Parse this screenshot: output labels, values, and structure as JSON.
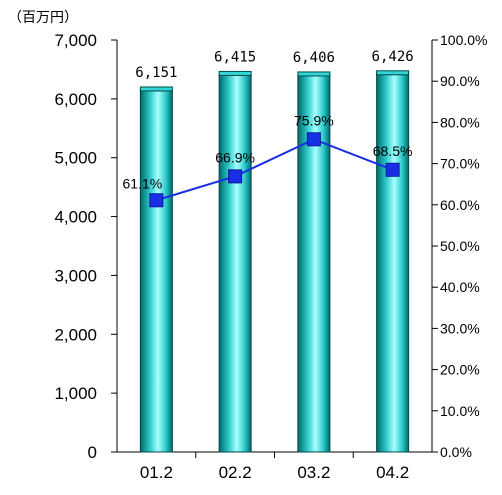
{
  "chart_data": {
    "type": "bar",
    "unit_label": "（百万円）",
    "categories": [
      "01.2",
      "02.2",
      "03.2",
      "04.2"
    ],
    "bar_values": [
      6151,
      6415,
      6406,
      6426
    ],
    "bar_labels": [
      "6,151",
      "6,415",
      "6,406",
      "6,426"
    ],
    "line_values": [
      61.1,
      66.9,
      75.9,
      68.5
    ],
    "line_labels": [
      "61.1%",
      "66.9%",
      "75.9%",
      "68.5%"
    ],
    "ylim_left": [
      0,
      7000
    ],
    "yticks_left": [
      "0",
      "1,000",
      "2,000",
      "3,000",
      "4,000",
      "5,000",
      "6,000",
      "7,000"
    ],
    "ylim_right": [
      0,
      100
    ],
    "yticks_right": [
      "0.0%",
      "10.0%",
      "20.0%",
      "30.0%",
      "40.0%",
      "50.0%",
      "60.0%",
      "70.0%",
      "80.0%",
      "90.0%",
      "100.0%"
    ],
    "colors": {
      "bar": "#33d6d6",
      "bar_dark": "#007a7a",
      "line": "#1a2ee6",
      "marker": "#1a2ee6"
    },
    "grid": false
  }
}
